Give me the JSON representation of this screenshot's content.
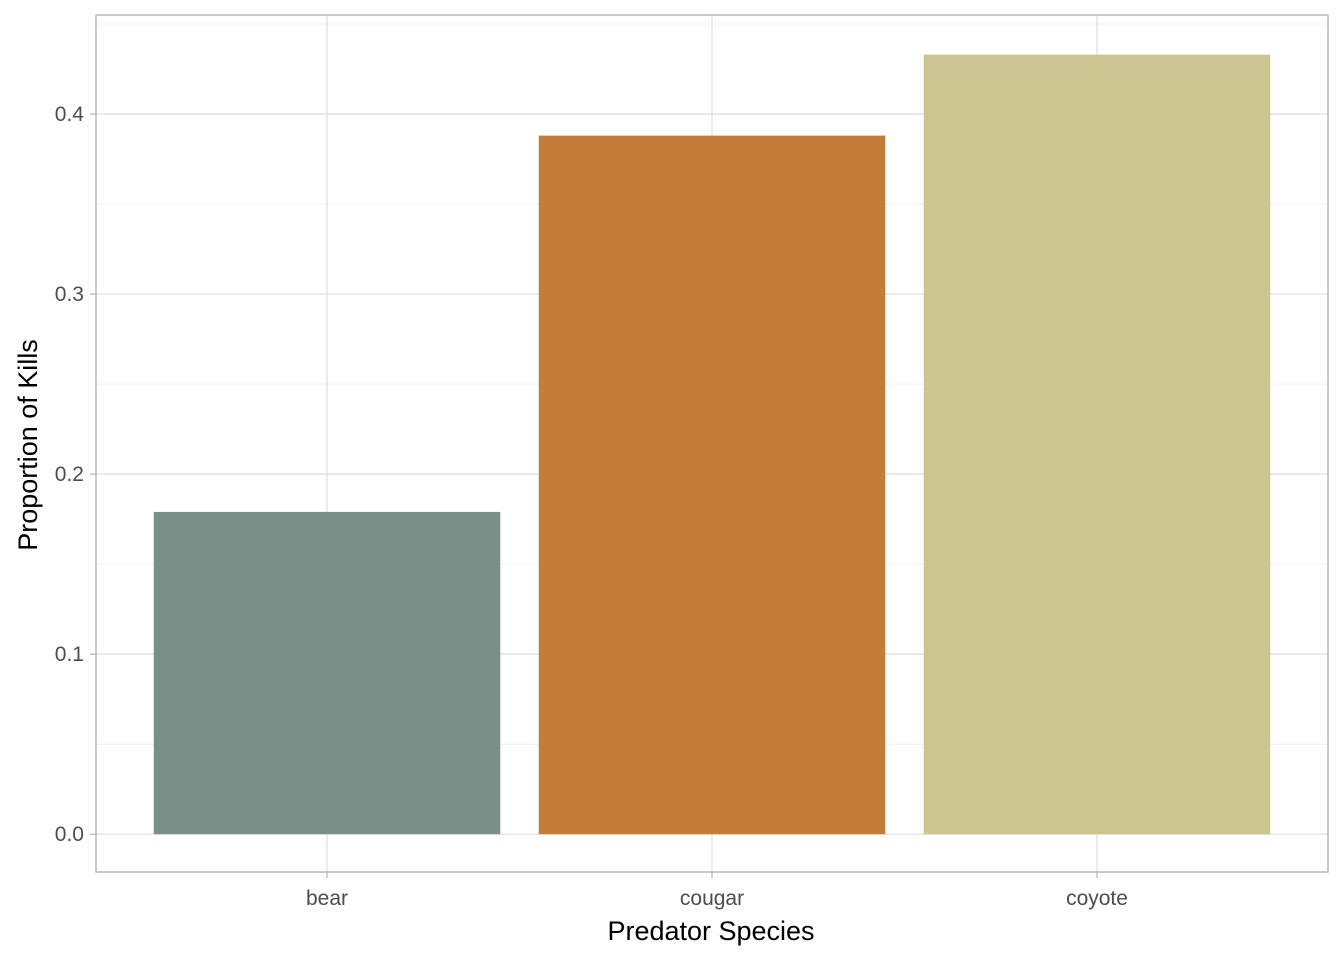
{
  "chart_data": {
    "type": "bar",
    "title": "",
    "xlabel": "Predator Species",
    "ylabel": "Proportion of Kills",
    "categories": [
      "bear",
      "cougar",
      "coyote"
    ],
    "values": [
      0.179,
      0.388,
      0.433
    ],
    "colors": [
      "#7a8f87",
      "#c37d38",
      "#cdc590"
    ],
    "ylim": [
      -0.021,
      0.455
    ],
    "yticks": [
      0.0,
      0.1,
      0.2,
      0.3,
      0.4
    ],
    "ytick_labels": [
      "0.0",
      "0.1",
      "0.2",
      "0.3",
      "0.4"
    ],
    "grid": true,
    "legend": "none"
  }
}
